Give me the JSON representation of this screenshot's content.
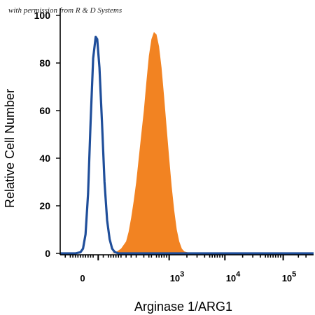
{
  "watermark": "with permission from R & D Systems",
  "chart_data": {
    "type": "area",
    "xlabel": "Arginase 1/ARG1",
    "ylabel": "Relative Cell Number",
    "ylim": [
      0,
      100
    ],
    "y_ticks": [
      0,
      20,
      40,
      60,
      80,
      100
    ],
    "x_ticks": [
      {
        "label": "0",
        "sup": ""
      },
      {
        "label": "10",
        "sup": "3"
      },
      {
        "label": "10",
        "sup": "4"
      },
      {
        "label": "10",
        "sup": "5"
      }
    ],
    "series": [
      {
        "style": "filled",
        "color": "#f28322",
        "points": [
          [
            0,
            0
          ],
          [
            20,
            0
          ],
          [
            22,
            0.5
          ],
          [
            24,
            2
          ],
          [
            26,
            5
          ],
          [
            27,
            9
          ],
          [
            28,
            15
          ],
          [
            29,
            22
          ],
          [
            30,
            30
          ],
          [
            31,
            40
          ],
          [
            32,
            50
          ],
          [
            33,
            60
          ],
          [
            34,
            72
          ],
          [
            35,
            83
          ],
          [
            36,
            90
          ],
          [
            37,
            93
          ],
          [
            38,
            92
          ],
          [
            39,
            87
          ],
          [
            40,
            78
          ],
          [
            41,
            66
          ],
          [
            42,
            53
          ],
          [
            43,
            40
          ],
          [
            44,
            28
          ],
          [
            45,
            18
          ],
          [
            46,
            10
          ],
          [
            47,
            5
          ],
          [
            48,
            2
          ],
          [
            49,
            0.8
          ],
          [
            52,
            0
          ],
          [
            100,
            0
          ]
        ]
      },
      {
        "style": "outline",
        "color": "#1f4e9a",
        "points": [
          [
            0,
            0
          ],
          [
            6,
            0
          ],
          [
            8,
            0.5
          ],
          [
            9,
            2
          ],
          [
            10,
            8
          ],
          [
            11,
            25
          ],
          [
            12,
            55
          ],
          [
            13,
            82
          ],
          [
            14,
            91
          ],
          [
            14.6,
            90
          ],
          [
            15.5,
            78
          ],
          [
            16.5,
            55
          ],
          [
            17.5,
            30
          ],
          [
            18.5,
            14
          ],
          [
            19.5,
            6
          ],
          [
            20.5,
            2
          ],
          [
            21.5,
            0.6
          ],
          [
            23,
            0
          ],
          [
            100,
            0
          ]
        ]
      }
    ]
  }
}
